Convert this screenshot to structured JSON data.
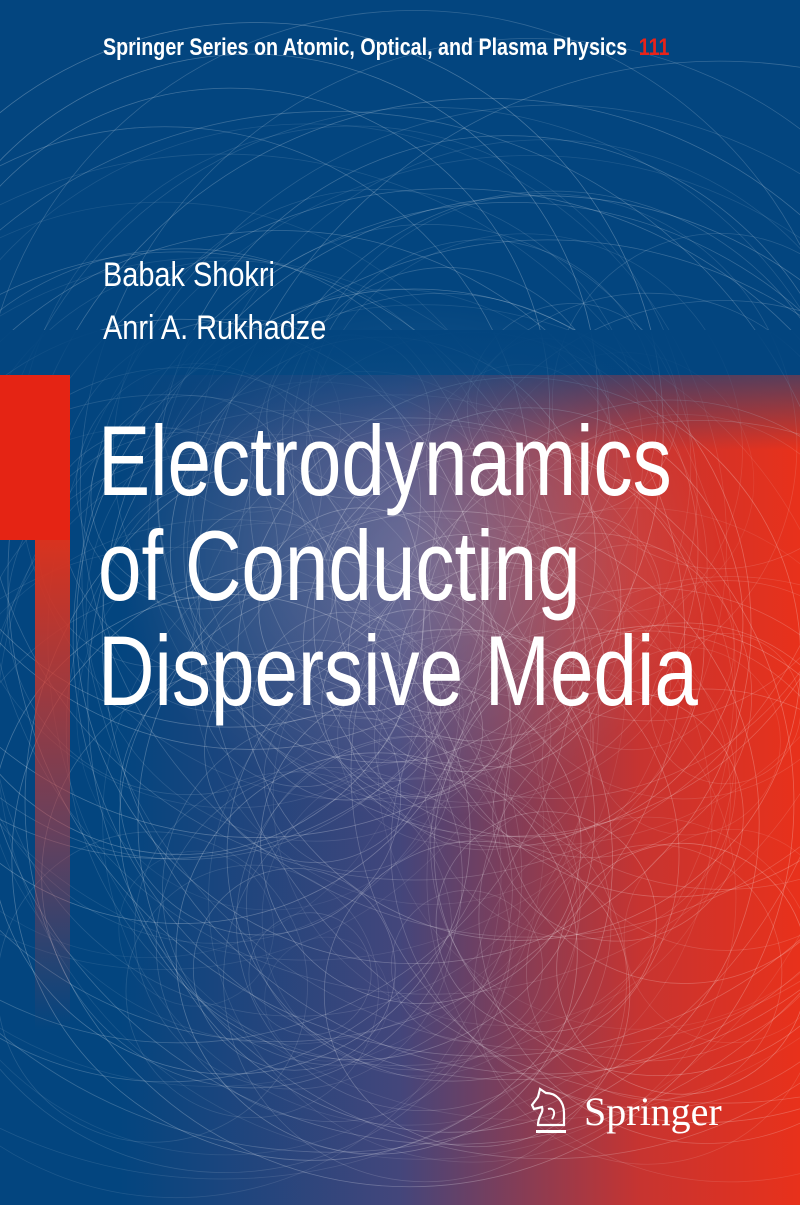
{
  "series": {
    "name": "Springer Series on Atomic, Optical, and Plasma Physics",
    "number": "111"
  },
  "authors": [
    "Babak Shokri",
    "Anri A. Rukhadze"
  ],
  "title_lines": [
    "Electrodynamics",
    "of Conducting",
    "Dispersive Media"
  ],
  "publisher": {
    "name": "Springer",
    "icon": "springer-knight-icon"
  },
  "colors": {
    "background": "#03457f",
    "accent_red": "#e52414",
    "text": "#ffffff"
  }
}
